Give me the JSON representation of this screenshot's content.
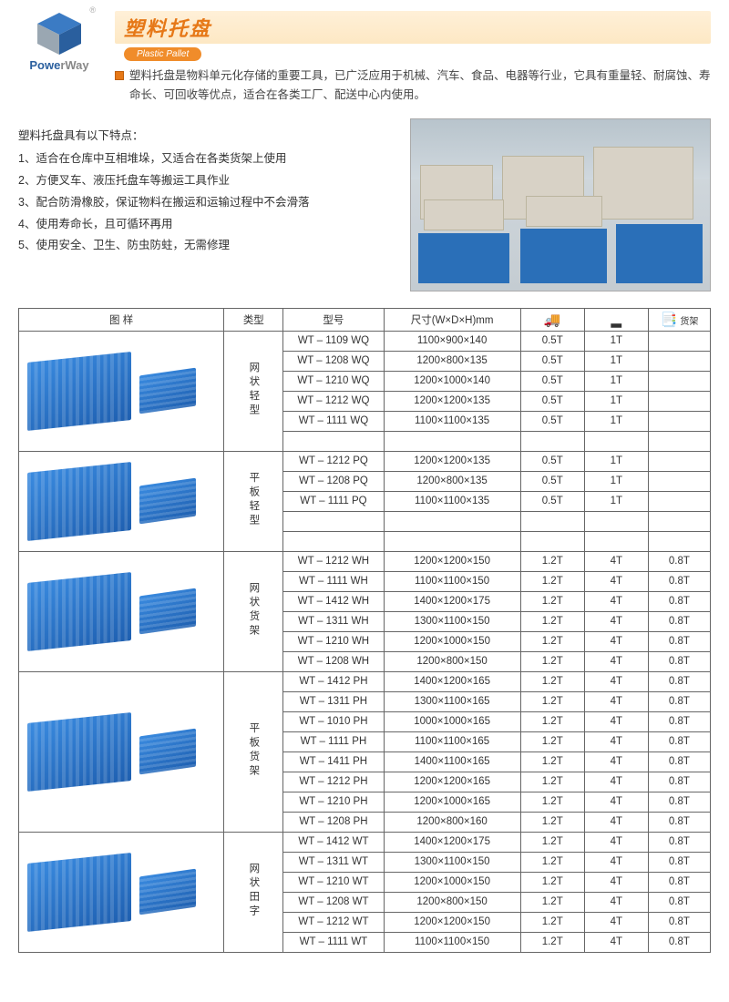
{
  "brand": {
    "name_blue": "Powe",
    "name_gray": "rWay",
    "tm": "®"
  },
  "title": {
    "cn": "塑料托盘",
    "en": "Plastic Pallet"
  },
  "intro": "塑料托盘是物料单元化存储的重要工具，已广泛应用于机械、汽车、食品、电器等行业，它具有重量轻、耐腐蚀、寿命长、可回收等优点，适合在各类工厂、配送中心内使用。",
  "features": {
    "heading": "塑料托盘具有以下特点：",
    "items": [
      "1、适合在仓库中互相堆垛，又适合在各类货架上使用",
      "2、方便叉车、液压托盘车等搬运工具作业",
      "3、配合防滑橡胶，保证物料在搬运和运输过程中不会滑落",
      "4、使用寿命长，且可循环再用",
      "5、使用安全、卫生、防虫防蛀，无需修理"
    ]
  },
  "table": {
    "headers": {
      "sample": "图 样",
      "type": "类型",
      "model": "型号",
      "dims": "尺寸(W×D×H)mm",
      "dyn_icon": "🚚",
      "stat_icon": "▂",
      "rack_icon": "📑",
      "rack_label": "货架"
    },
    "groups": [
      {
        "type_label": "网状轻型",
        "blank_rows": 1,
        "rows": [
          {
            "m": "WT – 1109  WQ",
            "d": "1100×900×140",
            "a": "0.5T",
            "b": "1T",
            "c": ""
          },
          {
            "m": "WT – 1208  WQ",
            "d": "1200×800×135",
            "a": "0.5T",
            "b": "1T",
            "c": ""
          },
          {
            "m": "WT – 1210  WQ",
            "d": "1200×1000×140",
            "a": "0.5T",
            "b": "1T",
            "c": ""
          },
          {
            "m": "WT – 1212  WQ",
            "d": "1200×1200×135",
            "a": "0.5T",
            "b": "1T",
            "c": ""
          },
          {
            "m": "WT – 1111  WQ",
            "d": "1100×1100×135",
            "a": "0.5T",
            "b": "1T",
            "c": ""
          }
        ]
      },
      {
        "type_label": "平板轻型",
        "blank_rows": 2,
        "rows": [
          {
            "m": "WT – 1212  PQ",
            "d": "1200×1200×135",
            "a": "0.5T",
            "b": "1T",
            "c": ""
          },
          {
            "m": "WT – 1208  PQ",
            "d": "1200×800×135",
            "a": "0.5T",
            "b": "1T",
            "c": ""
          },
          {
            "m": "WT – 1111  PQ",
            "d": "1100×1100×135",
            "a": "0.5T",
            "b": "1T",
            "c": ""
          }
        ]
      },
      {
        "type_label": "网状货架",
        "blank_rows": 0,
        "rows": [
          {
            "m": "WT – 1212  WH",
            "d": "1200×1200×150",
            "a": "1.2T",
            "b": "4T",
            "c": "0.8T"
          },
          {
            "m": "WT – 1111  WH",
            "d": "1100×1100×150",
            "a": "1.2T",
            "b": "4T",
            "c": "0.8T"
          },
          {
            "m": "WT – 1412  WH",
            "d": "1400×1200×175",
            "a": "1.2T",
            "b": "4T",
            "c": "0.8T"
          },
          {
            "m": "WT – 1311  WH",
            "d": "1300×1100×150",
            "a": "1.2T",
            "b": "4T",
            "c": "0.8T"
          },
          {
            "m": "WT – 1210  WH",
            "d": "1200×1000×150",
            "a": "1.2T",
            "b": "4T",
            "c": "0.8T"
          },
          {
            "m": "WT – 1208  WH",
            "d": "1200×800×150",
            "a": "1.2T",
            "b": "4T",
            "c": "0.8T"
          }
        ]
      },
      {
        "type_label": "平板货架",
        "blank_rows": 0,
        "rows": [
          {
            "m": "WT – 1412  PH",
            "d": "1400×1200×165",
            "a": "1.2T",
            "b": "4T",
            "c": "0.8T"
          },
          {
            "m": "WT – 1311  PH",
            "d": "1300×1100×165",
            "a": "1.2T",
            "b": "4T",
            "c": "0.8T"
          },
          {
            "m": "WT – 1010  PH",
            "d": "1000×1000×165",
            "a": "1.2T",
            "b": "4T",
            "c": "0.8T"
          },
          {
            "m": "WT – 1111  PH",
            "d": "1100×1100×165",
            "a": "1.2T",
            "b": "4T",
            "c": "0.8T"
          },
          {
            "m": "WT – 1411  PH",
            "d": "1400×1100×165",
            "a": "1.2T",
            "b": "4T",
            "c": "0.8T"
          },
          {
            "m": "WT – 1212  PH",
            "d": "1200×1200×165",
            "a": "1.2T",
            "b": "4T",
            "c": "0.8T"
          },
          {
            "m": "WT – 1210  PH",
            "d": "1200×1000×165",
            "a": "1.2T",
            "b": "4T",
            "c": "0.8T"
          },
          {
            "m": "WT – 1208  PH",
            "d": "1200×800×160",
            "a": "1.2T",
            "b": "4T",
            "c": "0.8T"
          }
        ]
      },
      {
        "type_label": "网状田字",
        "blank_rows": 0,
        "rows": [
          {
            "m": "WT – 1412  WT",
            "d": "1400×1200×175",
            "a": "1.2T",
            "b": "4T",
            "c": "0.8T"
          },
          {
            "m": "WT – 1311  WT",
            "d": "1300×1100×150",
            "a": "1.2T",
            "b": "4T",
            "c": "0.8T"
          },
          {
            "m": "WT – 1210  WT",
            "d": "1200×1000×150",
            "a": "1.2T",
            "b": "4T",
            "c": "0.8T"
          },
          {
            "m": "WT – 1208  WT",
            "d": "1200×800×150",
            "a": "1.2T",
            "b": "4T",
            "c": "0.8T"
          },
          {
            "m": "WT – 1212  WT",
            "d": "1200×1200×150",
            "a": "1.2T",
            "b": "4T",
            "c": "0.8T"
          },
          {
            "m": "WT – 1111  WT",
            "d": "1100×1100×150",
            "a": "1.2T",
            "b": "4T",
            "c": "0.8T"
          }
        ]
      }
    ]
  },
  "colors": {
    "accent": "#e67817",
    "pallet_blue": "#2a6fb8",
    "border": "#666666"
  }
}
